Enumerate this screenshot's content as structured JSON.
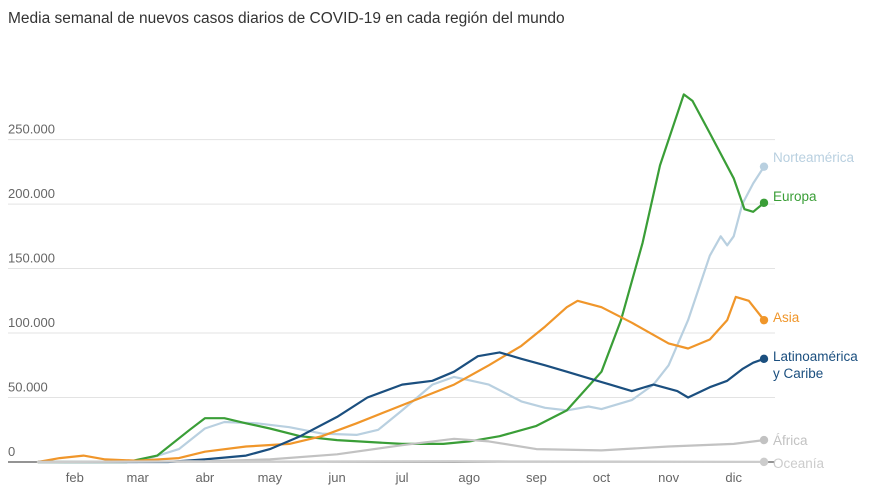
{
  "chart_data": {
    "type": "line",
    "title": "Media semanal de nuevos casos diarios de COVID-19 en cada región del mundo",
    "xlabel": "",
    "ylabel": "",
    "x_ticks": [
      "feb",
      "mar",
      "abr",
      "may",
      "jun",
      "jul",
      "ago",
      "sep",
      "oct",
      "nov",
      "dic"
    ],
    "y_ticks": [
      {
        "value": 0,
        "label": "0"
      },
      {
        "value": 50000,
        "label": "50.000"
      },
      {
        "value": 100000,
        "label": "100.000"
      },
      {
        "value": 150000,
        "label": "150.000"
      },
      {
        "value": 200000,
        "label": "200.000"
      },
      {
        "value": 250000,
        "label": "250.000"
      }
    ],
    "x_range": [
      "2020-01-15",
      "2020-12-15"
    ],
    "ylim": [
      0,
      290000
    ],
    "grid": true,
    "legend": "end-labels",
    "series": [
      {
        "name": "Norteamérica",
        "color": "#b9d0e0",
        "points": [
          [
            "2020-01-15",
            0
          ],
          [
            "2020-03-01",
            0
          ],
          [
            "2020-03-20",
            10000
          ],
          [
            "2020-04-01",
            26000
          ],
          [
            "2020-04-10",
            31000
          ],
          [
            "2020-04-25",
            30000
          ],
          [
            "2020-05-10",
            27000
          ],
          [
            "2020-05-25",
            22000
          ],
          [
            "2020-06-10",
            21000
          ],
          [
            "2020-06-20",
            25000
          ],
          [
            "2020-07-01",
            40000
          ],
          [
            "2020-07-15",
            60000
          ],
          [
            "2020-07-25",
            66000
          ],
          [
            "2020-08-10",
            60000
          ],
          [
            "2020-08-25",
            47000
          ],
          [
            "2020-09-05",
            42000
          ],
          [
            "2020-09-15",
            40000
          ],
          [
            "2020-09-25",
            43000
          ],
          [
            "2020-10-01",
            41000
          ],
          [
            "2020-10-15",
            48000
          ],
          [
            "2020-10-25",
            60000
          ],
          [
            "2020-11-01",
            75000
          ],
          [
            "2020-11-10",
            110000
          ],
          [
            "2020-11-20",
            160000
          ],
          [
            "2020-11-25",
            175000
          ],
          [
            "2020-11-28",
            168000
          ],
          [
            "2020-12-01",
            175000
          ],
          [
            "2020-12-05",
            200000
          ],
          [
            "2020-12-10",
            216000
          ],
          [
            "2020-12-15",
            229000
          ]
        ]
      },
      {
        "name": "Europa",
        "color": "#3a9e37",
        "points": [
          [
            "2020-01-15",
            0
          ],
          [
            "2020-02-25",
            0
          ],
          [
            "2020-03-10",
            5000
          ],
          [
            "2020-03-25",
            25000
          ],
          [
            "2020-04-01",
            34000
          ],
          [
            "2020-04-10",
            34000
          ],
          [
            "2020-04-20",
            30000
          ],
          [
            "2020-05-01",
            26000
          ],
          [
            "2020-05-15",
            20000
          ],
          [
            "2020-06-01",
            17000
          ],
          [
            "2020-07-01",
            14000
          ],
          [
            "2020-07-20",
            14000
          ],
          [
            "2020-08-01",
            16000
          ],
          [
            "2020-08-15",
            20000
          ],
          [
            "2020-09-01",
            28000
          ],
          [
            "2020-09-15",
            40000
          ],
          [
            "2020-10-01",
            70000
          ],
          [
            "2020-10-10",
            110000
          ],
          [
            "2020-10-20",
            170000
          ],
          [
            "2020-10-28",
            230000
          ],
          [
            "2020-11-05",
            270000
          ],
          [
            "2020-11-08",
            285000
          ],
          [
            "2020-11-12",
            280000
          ],
          [
            "2020-11-20",
            255000
          ],
          [
            "2020-12-01",
            220000
          ],
          [
            "2020-12-06",
            196000
          ],
          [
            "2020-12-10",
            194000
          ],
          [
            "2020-12-15",
            201000
          ]
        ]
      },
      {
        "name": "Asia",
        "color": "#f0962a",
        "points": [
          [
            "2020-01-15",
            0
          ],
          [
            "2020-01-25",
            3000
          ],
          [
            "2020-02-05",
            5000
          ],
          [
            "2020-02-15",
            2000
          ],
          [
            "2020-03-01",
            1000
          ],
          [
            "2020-03-20",
            3000
          ],
          [
            "2020-04-01",
            8000
          ],
          [
            "2020-04-20",
            12000
          ],
          [
            "2020-05-10",
            14000
          ],
          [
            "2020-05-25",
            20000
          ],
          [
            "2020-06-10",
            30000
          ],
          [
            "2020-06-25",
            40000
          ],
          [
            "2020-07-10",
            50000
          ],
          [
            "2020-07-25",
            60000
          ],
          [
            "2020-08-10",
            75000
          ],
          [
            "2020-08-25",
            90000
          ],
          [
            "2020-09-05",
            105000
          ],
          [
            "2020-09-15",
            120000
          ],
          [
            "2020-09-20",
            125000
          ],
          [
            "2020-10-01",
            120000
          ],
          [
            "2020-10-15",
            108000
          ],
          [
            "2020-11-01",
            92000
          ],
          [
            "2020-11-10",
            88000
          ],
          [
            "2020-11-20",
            95000
          ],
          [
            "2020-11-28",
            110000
          ],
          [
            "2020-12-02",
            128000
          ],
          [
            "2020-12-08",
            125000
          ],
          [
            "2020-12-15",
            110000
          ]
        ]
      },
      {
        "name": "Latinoamérica y Caribe",
        "color": "#1b4f7f",
        "points": [
          [
            "2020-01-15",
            0
          ],
          [
            "2020-03-15",
            0
          ],
          [
            "2020-04-01",
            2000
          ],
          [
            "2020-04-20",
            5000
          ],
          [
            "2020-05-01",
            10000
          ],
          [
            "2020-05-15",
            20000
          ],
          [
            "2020-06-01",
            35000
          ],
          [
            "2020-06-15",
            50000
          ],
          [
            "2020-07-01",
            60000
          ],
          [
            "2020-07-15",
            63000
          ],
          [
            "2020-07-25",
            70000
          ],
          [
            "2020-08-05",
            82000
          ],
          [
            "2020-08-15",
            85000
          ],
          [
            "2020-08-25",
            80000
          ],
          [
            "2020-09-05",
            75000
          ],
          [
            "2020-09-15",
            70000
          ],
          [
            "2020-09-25",
            65000
          ],
          [
            "2020-10-05",
            60000
          ],
          [
            "2020-10-15",
            55000
          ],
          [
            "2020-10-25",
            60000
          ],
          [
            "2020-11-05",
            55000
          ],
          [
            "2020-11-10",
            50000
          ],
          [
            "2020-11-20",
            58000
          ],
          [
            "2020-11-28",
            63000
          ],
          [
            "2020-12-05",
            72000
          ],
          [
            "2020-12-10",
            77000
          ],
          [
            "2020-12-15",
            80000
          ]
        ]
      },
      {
        "name": "África",
        "color": "#c2c2c2",
        "points": [
          [
            "2020-01-15",
            0
          ],
          [
            "2020-04-01",
            500
          ],
          [
            "2020-05-01",
            2000
          ],
          [
            "2020-06-01",
            6000
          ],
          [
            "2020-07-01",
            13000
          ],
          [
            "2020-07-25",
            18000
          ],
          [
            "2020-08-10",
            16000
          ],
          [
            "2020-09-01",
            10000
          ],
          [
            "2020-10-01",
            9000
          ],
          [
            "2020-11-01",
            12000
          ],
          [
            "2020-12-01",
            14000
          ],
          [
            "2020-12-15",
            17000
          ]
        ]
      },
      {
        "name": "Oceanía",
        "color": "#cccccc",
        "points": [
          [
            "2020-01-15",
            0
          ],
          [
            "2020-03-25",
            500
          ],
          [
            "2020-04-10",
            300
          ],
          [
            "2020-07-25",
            600
          ],
          [
            "2020-08-15",
            500
          ],
          [
            "2020-12-15",
            100
          ]
        ]
      }
    ]
  }
}
